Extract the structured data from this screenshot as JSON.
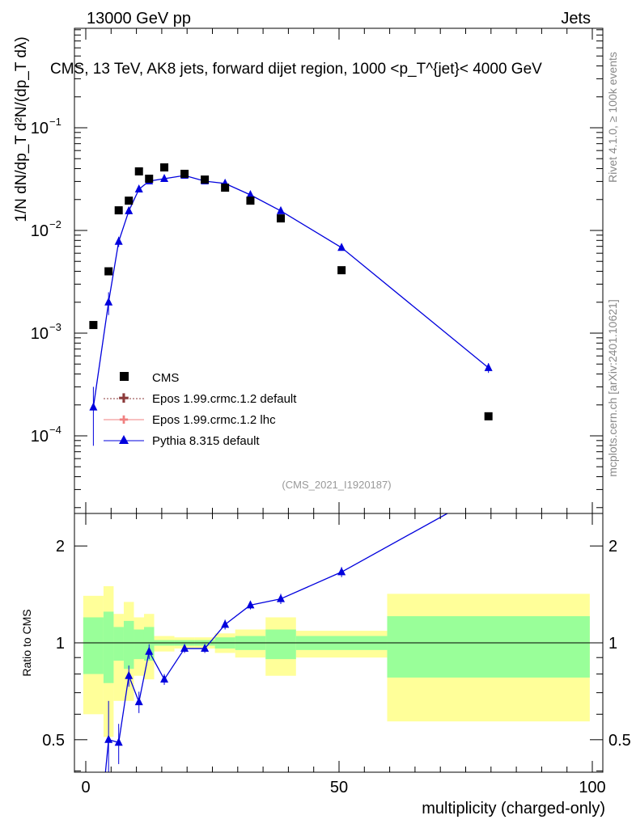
{
  "header": {
    "left": "13000 GeV pp",
    "right": "Jets"
  },
  "side": {
    "rivet": "Rivet 4.1.0, ≥ 100k events",
    "mcplots": "mcplots.cern.ch [arXiv:2401.10621]"
  },
  "colors": {
    "cms": "#000000",
    "pythia": "#0000dd",
    "epos_default": "#8b3a3a",
    "epos_lhc": "#f08080",
    "green": "#99ff99",
    "yellow": "#ffff99"
  },
  "chart_data": [
    {
      "type": "scatter",
      "title": "CMS, 13 TeV, AK8 jets, forward dijet region, 1000 <p_T^{jet}< 4000 GeV",
      "ylabel": "1/N dN/dp_T  d²N/(dp_T dλ)",
      "xlabel": "multiplicity (charged-only)",
      "yscale": "log",
      "ylim": [
        1.74e-05,
        0.93
      ],
      "xlim": [
        -2.3,
        102
      ],
      "yticks": [
        {
          "v": 0.1,
          "base": "10",
          "exp": "−1"
        },
        {
          "v": 0.01,
          "base": "10",
          "exp": "−2"
        },
        {
          "v": 0.001,
          "base": "10",
          "exp": "−3"
        },
        {
          "v": 0.0001,
          "base": "10",
          "exp": "−4"
        }
      ],
      "analysis_tag": "(CMS_2021_I1920187)",
      "legend": [
        "CMS",
        "Epos 1.99.crmc.1.2 default",
        "Epos 1.99.crmc.1.2 lhc",
        "Pythia 8.315 default"
      ],
      "legend_placement": "bottom-left",
      "x": [
        1.5,
        4.5,
        6.5,
        8.5,
        10.5,
        12.5,
        15.5,
        19.5,
        23.5,
        27.5,
        32.5,
        38.5,
        50.5,
        79.5
      ],
      "series": [
        {
          "name": "CMS",
          "values": [
            0.0012,
            0.004,
            0.0157,
            0.0195,
            0.0376,
            0.0319,
            0.0411,
            0.0356,
            0.0313,
            0.0261,
            0.0195,
            0.0131,
            0.0041,
            0.000155
          ]
        },
        {
          "name": "Pythia 8.315 default",
          "values": [
            0.00019,
            0.002,
            0.0078,
            0.0155,
            0.0252,
            0.0302,
            0.0319,
            0.0343,
            0.0302,
            0.0287,
            0.0222,
            0.0155,
            0.0068,
            0.00046
          ],
          "err": [
            0.00011,
            0.0005,
            0.0009,
            0.0012,
            0.0015,
            0.0015,
            0.001,
            0.001,
            0.001,
            0.001,
            0.0009,
            0.0008,
            0.0004,
            5e-05
          ]
        }
      ]
    },
    {
      "type": "line",
      "ylabel": "Ratio to CMS",
      "yscale": "log",
      "ylim": [
        0.397,
        2.52
      ],
      "yticks": [
        {
          "v": 0.5,
          "label": "0.5"
        },
        {
          "v": 1,
          "label": "1"
        },
        {
          "v": 2,
          "label": "2"
        }
      ],
      "xticks": [
        {
          "v": 0,
          "label": "0"
        },
        {
          "v": 50,
          "label": "50"
        },
        {
          "v": 100,
          "label": "100"
        }
      ],
      "bin_edges": [
        -0.5,
        3.5,
        5.5,
        7.5,
        9.5,
        11.5,
        13.5,
        17.5,
        21.5,
        25.5,
        29.5,
        35.5,
        41.5,
        59.5,
        99.5
      ],
      "band_green": [
        [
          0.8,
          1.2
        ],
        [
          0.75,
          1.25
        ],
        [
          0.88,
          1.12
        ],
        [
          0.83,
          1.17
        ],
        [
          0.89,
          1.1
        ],
        [
          0.88,
          1.12
        ],
        [
          0.98,
          1.02
        ],
        [
          0.98,
          1.02
        ],
        [
          0.98,
          1.02
        ],
        [
          0.96,
          1.04
        ],
        [
          0.95,
          1.05
        ],
        [
          0.89,
          1.1
        ],
        [
          0.95,
          1.05
        ],
        [
          0.78,
          1.21
        ]
      ],
      "band_yellow": [
        [
          0.6,
          1.4
        ],
        [
          0.51,
          1.5
        ],
        [
          0.66,
          1.23
        ],
        [
          0.66,
          1.34
        ],
        [
          0.79,
          1.2
        ],
        [
          0.77,
          1.23
        ],
        [
          0.94,
          1.05
        ],
        [
          0.96,
          1.04
        ],
        [
          0.96,
          1.04
        ],
        [
          0.93,
          1.07
        ],
        [
          0.9,
          1.1
        ],
        [
          0.79,
          1.2
        ],
        [
          0.9,
          1.09
        ],
        [
          0.57,
          1.42
        ]
      ],
      "x": [
        1.5,
        4.5,
        6.5,
        8.5,
        10.5,
        12.5,
        15.5,
        19.5,
        23.5,
        27.5,
        32.5,
        38.5,
        50.5,
        79.5
      ],
      "pythia_ratio": [
        0.16,
        0.5,
        0.49,
        0.79,
        0.655,
        0.94,
        0.77,
        0.96,
        0.96,
        1.14,
        1.31,
        1.37,
        1.66,
        2.97
      ],
      "pythia_ratio_err": [
        0.1,
        0.16,
        0.07,
        0.06,
        0.05,
        0.05,
        0.03,
        0.03,
        0.03,
        0.04,
        0.04,
        0.05,
        0.06,
        0.3
      ]
    }
  ]
}
